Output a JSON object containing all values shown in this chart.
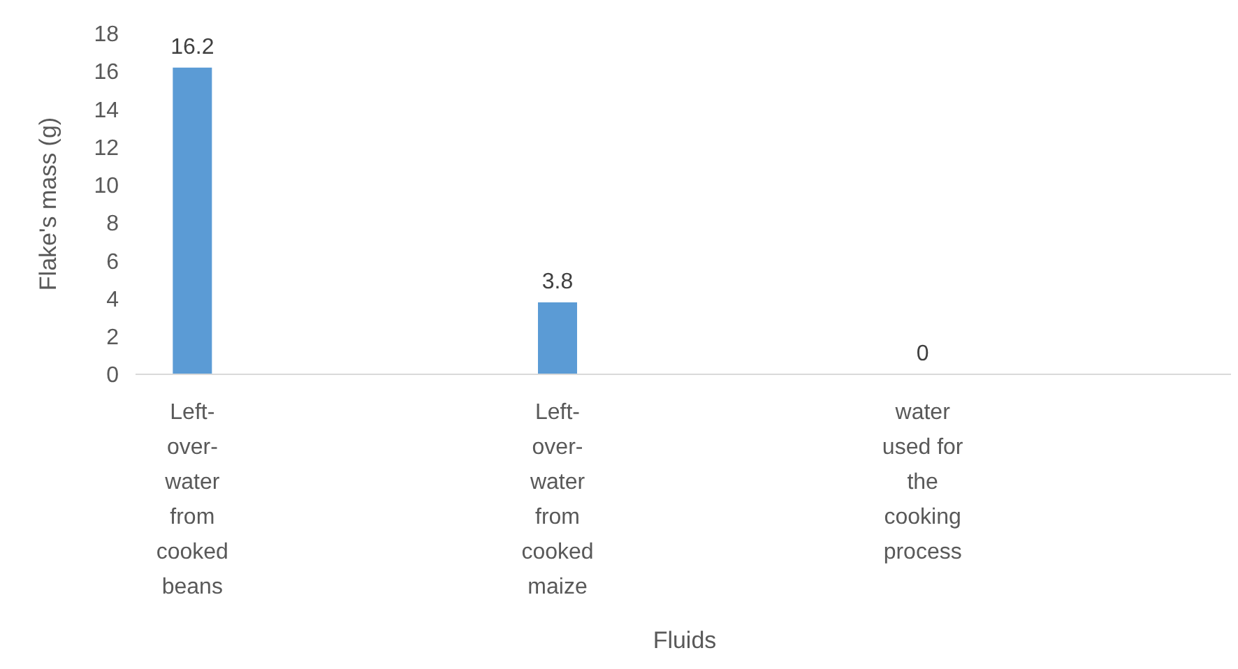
{
  "chart_data": {
    "type": "bar",
    "xlabel": "Fluids",
    "ylabel": "Flake's mass (g)",
    "categories": [
      "Left-over-water from cooked beans",
      "Left-over-water from cooked maize",
      "water used for the cooking process"
    ],
    "values": [
      16.2,
      3.8,
      0
    ],
    "color": "#5b9bd5",
    "ylim": [
      0,
      18
    ],
    "yticks": [
      0,
      2,
      4,
      6,
      8,
      10,
      12,
      14,
      16,
      18
    ],
    "data_labels": true,
    "grid": false
  }
}
